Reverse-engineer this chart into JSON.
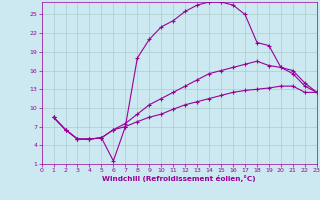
{
  "xlabel": "Windchill (Refroidissement éolien,°C)",
  "bg_color": "#cce8f0",
  "grid_color": "#aacccc",
  "line_color": "#990099",
  "xlim": [
    0,
    23
  ],
  "ylim": [
    1,
    27
  ],
  "xticks": [
    0,
    1,
    2,
    3,
    4,
    5,
    6,
    7,
    8,
    9,
    10,
    11,
    12,
    13,
    14,
    15,
    16,
    17,
    18,
    19,
    20,
    21,
    22,
    23
  ],
  "yticks": [
    1,
    4,
    7,
    10,
    13,
    16,
    19,
    22,
    25
  ],
  "curve1_x": [
    1,
    2,
    3,
    4,
    5,
    6,
    7,
    8,
    9,
    10,
    11,
    12,
    13,
    14,
    15,
    16,
    17,
    18,
    19,
    20,
    21,
    22,
    23
  ],
  "curve1_y": [
    8.5,
    6.5,
    5.0,
    5.0,
    5.2,
    1.5,
    7.0,
    18.0,
    21.0,
    23.0,
    24.0,
    25.5,
    26.5,
    27.0,
    27.0,
    26.5,
    25.0,
    20.5,
    20.0,
    16.5,
    16.0,
    14.0,
    12.5
  ],
  "curve2_x": [
    1,
    2,
    3,
    4,
    5,
    6,
    7,
    8,
    9,
    10,
    11,
    12,
    13,
    14,
    15,
    16,
    17,
    18,
    19,
    20,
    21,
    22,
    23
  ],
  "curve2_y": [
    8.5,
    6.5,
    5.0,
    5.0,
    5.2,
    6.5,
    7.5,
    9.0,
    10.5,
    11.5,
    12.5,
    13.5,
    14.5,
    15.5,
    16.0,
    16.5,
    17.0,
    17.5,
    16.8,
    16.5,
    15.5,
    13.5,
    12.5
  ],
  "curve3_x": [
    1,
    2,
    3,
    4,
    5,
    6,
    7,
    8,
    9,
    10,
    11,
    12,
    13,
    14,
    15,
    16,
    17,
    18,
    19,
    20,
    21,
    22,
    23
  ],
  "curve3_y": [
    8.5,
    6.5,
    5.0,
    5.0,
    5.2,
    6.5,
    7.0,
    7.8,
    8.5,
    9.0,
    9.8,
    10.5,
    11.0,
    11.5,
    12.0,
    12.5,
    12.8,
    13.0,
    13.2,
    13.5,
    13.5,
    12.5,
    12.5
  ]
}
